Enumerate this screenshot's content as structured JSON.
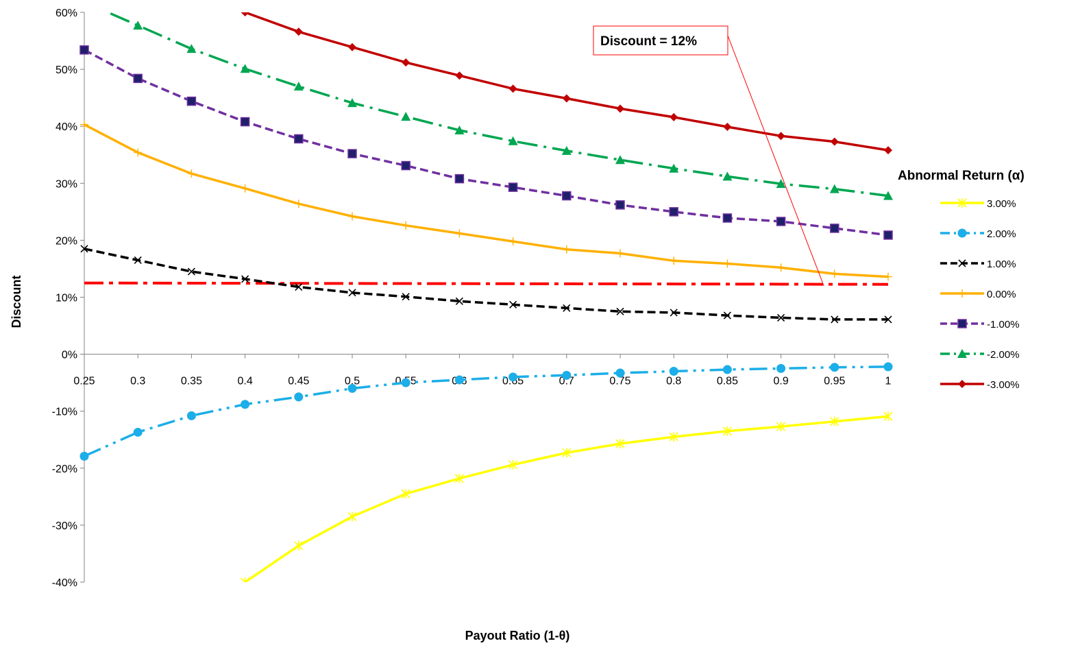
{
  "chart_data": {
    "type": "line",
    "title": "",
    "xlabel": "Payout Ratio (1-θ)",
    "ylabel": "Discount",
    "x": [
      0.25,
      0.3,
      0.35,
      0.4,
      0.45,
      0.5,
      0.55,
      0.6,
      0.65,
      0.7,
      0.75,
      0.8,
      0.85,
      0.9,
      0.95,
      1
    ],
    "x_tick_labels": [
      "0.25",
      "0.3",
      "0.35",
      "0.4",
      "0.45",
      "0.5",
      "0.55",
      "0.6",
      "0.65",
      "0.7",
      "0.75",
      "0.8",
      "0.85",
      "0.9",
      "0.95",
      "1"
    ],
    "ylim": [
      -0.4,
      0.6
    ],
    "y_ticks": [
      -0.4,
      -0.3,
      -0.2,
      -0.1,
      0,
      0.1,
      0.2,
      0.3,
      0.4,
      0.5,
      0.6
    ],
    "y_tick_labels": [
      "-40%",
      "-30%",
      "-20%",
      "-10%",
      "0%",
      "10%",
      "20%",
      "30%",
      "40%",
      "50%",
      "60%"
    ],
    "grid": false,
    "legend_title": "Abnormal Return (α)",
    "legend_position": "right",
    "series": [
      {
        "name": "3.00%",
        "color": "#FFFF00",
        "dash": "solid",
        "marker": "star",
        "values": [
          null,
          null,
          null,
          -0.4,
          -0.336,
          -0.285,
          -0.245,
          -0.218,
          -0.194,
          -0.173,
          -0.157,
          -0.145,
          -0.135,
          -0.127,
          -0.118,
          -0.109
        ]
      },
      {
        "name": "2.00%",
        "color": "#1CAEE8",
        "dash": "dashdotdot",
        "marker": "circle",
        "values": [
          -0.179,
          -0.137,
          -0.108,
          -0.088,
          -0.075,
          -0.06,
          -0.05,
          -0.045,
          -0.04,
          -0.037,
          -0.033,
          -0.03,
          -0.027,
          -0.025,
          -0.023,
          -0.022
        ]
      },
      {
        "name": "1.00%",
        "color": "#000000",
        "dash": "dash",
        "marker": "x",
        "values": [
          0.185,
          0.165,
          0.145,
          0.132,
          0.118,
          0.108,
          0.101,
          0.093,
          0.087,
          0.081,
          0.075,
          0.073,
          0.068,
          0.064,
          0.061,
          0.061
        ]
      },
      {
        "name": "0.00%",
        "color": "#FFB000",
        "dash": "solid",
        "marker": "plus",
        "values": [
          0.403,
          0.354,
          0.317,
          0.291,
          0.264,
          0.242,
          0.226,
          0.212,
          0.198,
          0.184,
          0.177,
          0.164,
          0.159,
          0.152,
          0.141,
          0.136
        ]
      },
      {
        "name": "-1.00%",
        "color": "#7030A0",
        "dash": "dash",
        "marker": "square",
        "marker_fill": "#1F1F6B",
        "values": [
          0.534,
          0.484,
          0.444,
          0.408,
          0.378,
          0.352,
          0.331,
          0.308,
          0.293,
          0.278,
          0.262,
          0.25,
          0.239,
          0.233,
          0.221,
          0.209
        ]
      },
      {
        "name": "-2.00%",
        "color": "#00A651",
        "dash": "dashdot",
        "marker": "triangle",
        "values": [
          null,
          0.577,
          0.536,
          0.501,
          0.47,
          0.441,
          0.417,
          0.393,
          0.374,
          0.357,
          0.341,
          0.326,
          0.312,
          0.299,
          0.29,
          0.278
        ]
      },
      {
        "name": "-3.00%",
        "color": "#C00000",
        "dash": "solid",
        "marker": "diamond",
        "values": [
          null,
          null,
          null,
          0.6,
          0.566,
          0.539,
          0.512,
          0.489,
          0.466,
          0.449,
          0.431,
          0.416,
          0.399,
          0.383,
          0.373,
          0.358
        ]
      }
    ],
    "reference_line": {
      "value": 0.125,
      "color": "#FF0000",
      "dash": "dashdot"
    },
    "annotation": {
      "text": "Discount = 12%",
      "points_to_x": 0.94,
      "points_to_y": 0.12
    }
  }
}
